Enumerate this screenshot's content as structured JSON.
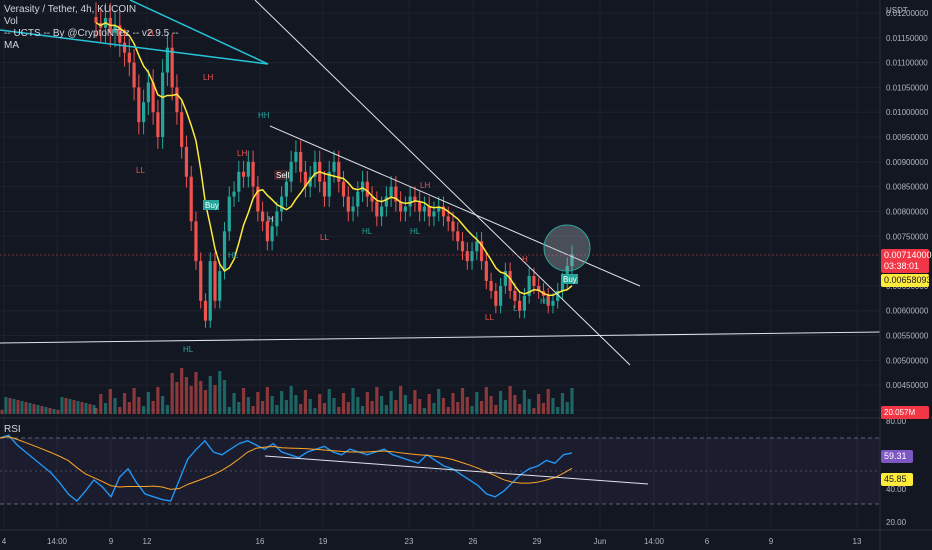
{
  "legend": {
    "title": "Verasity / Tether, 4h, KUCOIN",
    "vol": "Vol",
    "indicator": "-- UCTS -- By @CryptoNTez -- v2.9.5 --",
    "ma": "MA"
  },
  "rsi_label": "RSI",
  "price_axis": {
    "currency": "USDT",
    "ticks": [
      "0.01200000",
      "0.01150000",
      "0.01100000",
      "0.01050000",
      "0.01000000",
      "0.00950000",
      "0.00900000",
      "0.00850000",
      "0.00800000",
      "0.00750000",
      "0.00650000",
      "0.00600000",
      "0.00550000",
      "0.00500000",
      "0.00450000",
      "0.00400000"
    ]
  },
  "tags": {
    "close_price": "0.00714000",
    "countdown": "03:38:01",
    "ma_value": "0.00658093",
    "volume": "20.057M",
    "rsi": "59.31",
    "rsi_ma": "45.85"
  },
  "rsi_axis": {
    "ticks": [
      "80.00",
      "40.00",
      "20.00"
    ]
  },
  "time_axis": {
    "ticks": [
      "4",
      "14:00",
      "9",
      "12",
      "16",
      "19",
      "23",
      "26",
      "29",
      "Jun",
      "14:00",
      "6",
      "9",
      "13"
    ]
  },
  "signals": {
    "buy1": "Buy",
    "sell": "Sell",
    "buy2": "Buy",
    "marks": [
      "H",
      "HH",
      "LH",
      "LL",
      "HL",
      "HL",
      "HL",
      "LL",
      "LL",
      "LH",
      "L",
      "H",
      "HL",
      "H",
      "LH",
      "HL"
    ]
  },
  "colors": {
    "bg": "#131722",
    "up": "#26a69a",
    "down": "#ef5350",
    "ma": "#ffeb3b",
    "trend": "#e0e3eb",
    "cyan": "#26c6da",
    "rsi": "#2196f3"
  },
  "chart_data": {
    "type": "candlestick",
    "symbol": "Verasity / Tether",
    "interval": "4h",
    "exchange": "KUCOIN",
    "ylim": [
      0.004,
      0.0121
    ],
    "rsi_ylim": [
      20,
      80
    ],
    "last_close": 0.00714,
    "ma_last": 0.00658093,
    "rsi_last": 59.31,
    "rsi_ma_last": 45.85,
    "close_series": [
      0.0118,
      0.0117,
      0.0119,
      0.0116,
      0.01175,
      0.0114,
      0.0112,
      0.011,
      0.0105,
      0.0098,
      0.0102,
      0.0106,
      0.01,
      0.0095,
      0.0108,
      0.0113,
      0.0105,
      0.01,
      0.0093,
      0.0087,
      0.0078,
      0.007,
      0.0062,
      0.0058,
      0.007,
      0.0062,
      0.0068,
      0.0076,
      0.0083,
      0.0084,
      0.0088,
      0.0087,
      0.009,
      0.0085,
      0.008,
      0.0078,
      0.0074,
      0.0077,
      0.008,
      0.0083,
      0.0086,
      0.009,
      0.0092,
      0.0088,
      0.0085,
      0.0087,
      0.009,
      0.0086,
      0.0083,
      0.0088,
      0.009,
      0.0086,
      0.0083,
      0.008,
      0.0081,
      0.0084,
      0.0086,
      0.0083,
      0.0082,
      0.0079,
      0.0081,
      0.0083,
      0.0085,
      0.0082,
      0.008,
      0.0081,
      0.0083,
      0.0082,
      0.008,
      0.0081,
      0.0079,
      0.008,
      0.0081,
      0.0079,
      0.0078,
      0.0076,
      0.0074,
      0.0072,
      0.007,
      0.0072,
      0.0074,
      0.007,
      0.0066,
      0.0064,
      0.0061,
      0.0065,
      0.0068,
      0.0064,
      0.0062,
      0.006,
      0.0063,
      0.0067,
      0.0065,
      0.0064,
      0.0063,
      0.0061,
      0.0062,
      0.0064,
      0.0066,
      0.0069,
      0.00714
    ],
    "rsi_series": [
      70,
      72,
      65,
      60,
      55,
      50,
      45,
      38,
      30,
      25,
      32,
      40,
      35,
      28,
      42,
      48,
      38,
      30,
      28,
      26,
      25,
      40,
      55,
      62,
      68,
      60,
      58,
      62,
      66,
      68,
      65,
      62,
      66,
      60,
      58,
      56,
      60,
      62,
      64,
      60,
      58,
      62,
      60,
      58,
      60,
      62,
      58,
      56,
      54,
      52,
      58,
      54,
      50,
      48,
      44,
      40,
      36,
      30,
      28,
      32,
      38,
      44,
      48,
      50,
      54,
      52,
      58,
      59.31
    ]
  }
}
